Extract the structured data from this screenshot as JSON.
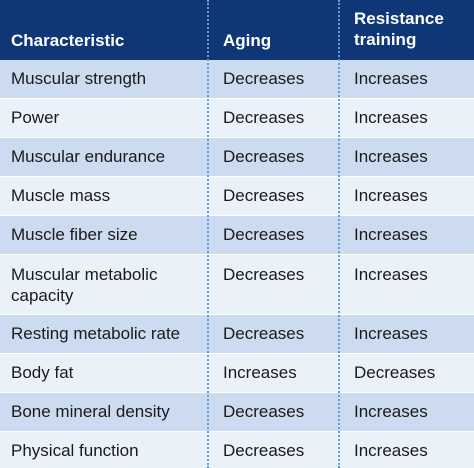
{
  "table": {
    "headers": [
      "Characteristic",
      "Aging",
      "Resistance training"
    ],
    "rows": [
      [
        "Muscular strength",
        "Decreases",
        "Increases"
      ],
      [
        "Power",
        "Decreases",
        "Increases"
      ],
      [
        "Muscular endurance",
        "Decreases",
        "Increases"
      ],
      [
        "Muscle mass",
        "Decreases",
        "Increases"
      ],
      [
        "Muscle fiber size",
        "Decreases",
        "Increases"
      ],
      [
        "Muscular metabolic capacity",
        "Decreases",
        "Increases"
      ],
      [
        "Resting metabolic rate",
        "Decreases",
        "Increases"
      ],
      [
        "Body fat",
        "Increases",
        "Decreases"
      ],
      [
        "Bone mineral density",
        "Decreases",
        "Increases"
      ],
      [
        "Physical function",
        "Decreases",
        "Increases"
      ]
    ],
    "colors": {
      "header_bg": "#0f3677",
      "row_odd_bg": "#ccdbf0",
      "row_even_bg": "#ebf1f9",
      "divider": "#5fa0dd"
    }
  }
}
